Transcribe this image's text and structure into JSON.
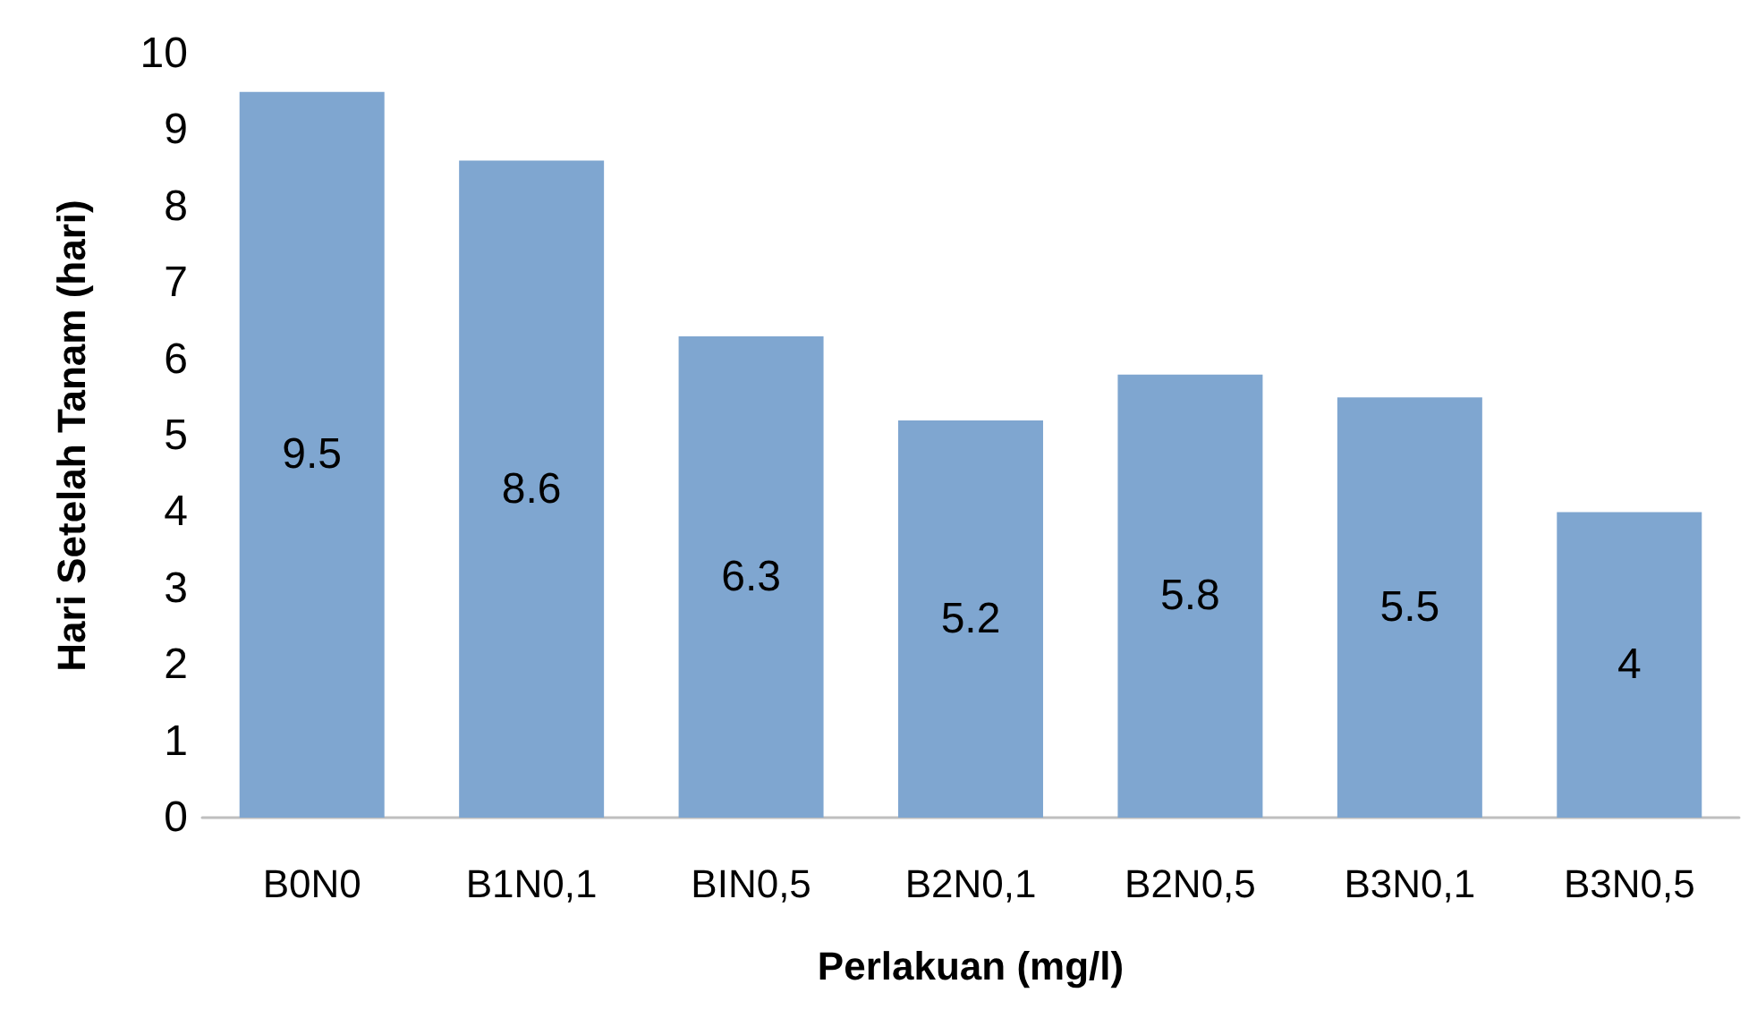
{
  "chart_data": {
    "type": "bar",
    "xlabel": "Perlakuan (mg/l)",
    "ylabel": "Hari Setelah Tanam (hari)",
    "categories": [
      "B0N0",
      "B1N0,1",
      "BIN0,5",
      "B2N0,1",
      "B2N0,5",
      "B3N0,1",
      "B3N0,5"
    ],
    "values": [
      9.5,
      8.6,
      6.3,
      5.2,
      5.8,
      5.5,
      4
    ],
    "color": "#7fa6d0",
    "ylim": [
      0,
      10
    ],
    "yticks": [
      0,
      1,
      2,
      3,
      4,
      5,
      6,
      7,
      8,
      9,
      10
    ],
    "grid": false,
    "data_labels": true
  }
}
